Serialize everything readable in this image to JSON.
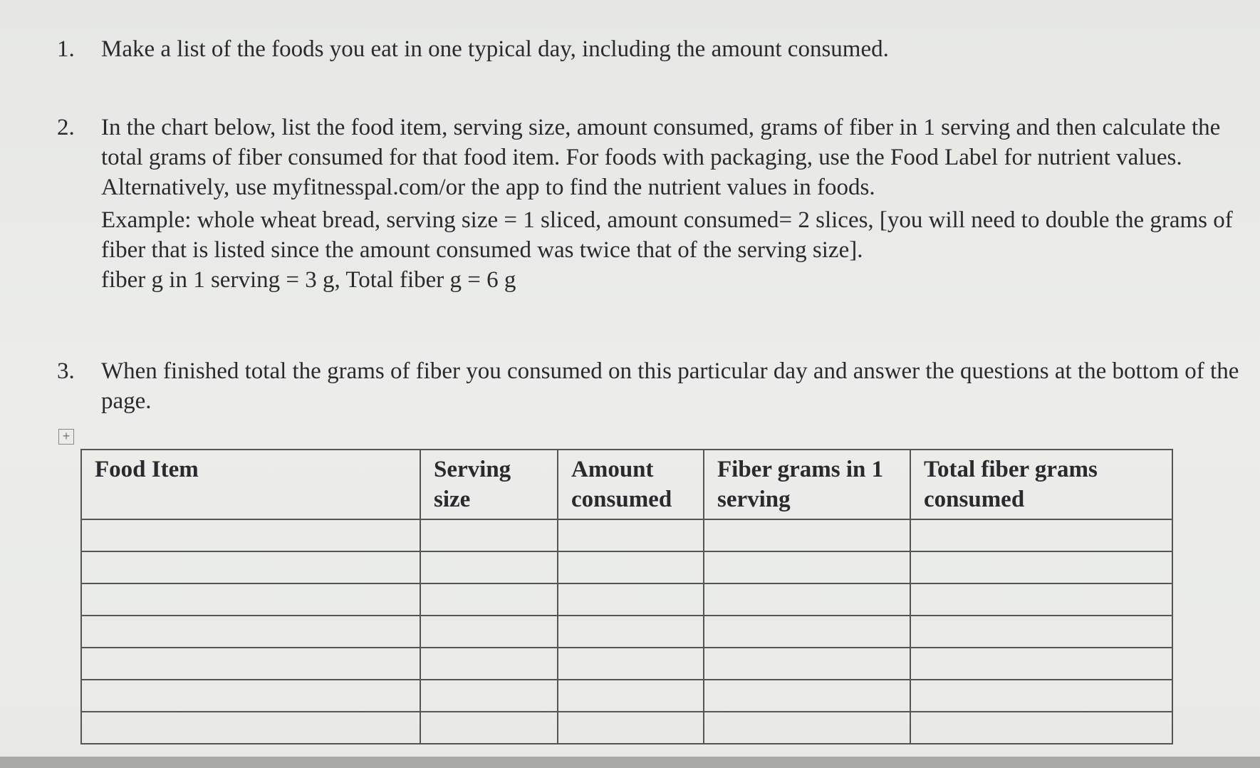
{
  "instructions": [
    {
      "number": "1.",
      "text": "Make a list of the foods you eat in one typical day, including the amount consumed."
    },
    {
      "number": "2.",
      "text": "In the chart below, list the food item, serving size, amount consumed, grams of fiber in 1 serving and then calculate the total grams of fiber consumed for that food item. For foods with packaging, use the Food Label for nutrient values. Alternatively, use myfitnesspal.com/or the app to find the nutrient values in foods.",
      "example": "Example: whole wheat bread, serving size = 1 sliced, amount consumed= 2 slices, [you will need to double the grams of fiber that is listed since the amount consumed was twice that of the serving size].",
      "example_result": "fiber g in 1 serving = 3 g, Total fiber g = 6 g"
    },
    {
      "number": "3.",
      "text": "When finished total the grams of fiber you consumed on this particular day and answer the questions at the bottom of the page."
    }
  ],
  "table": {
    "move_handle": "+",
    "headers": [
      "Food Item",
      "Serving size",
      "Amount consumed",
      "Fiber grams in 1 serving",
      "Total fiber grams consumed"
    ],
    "empty_rows": 7
  }
}
